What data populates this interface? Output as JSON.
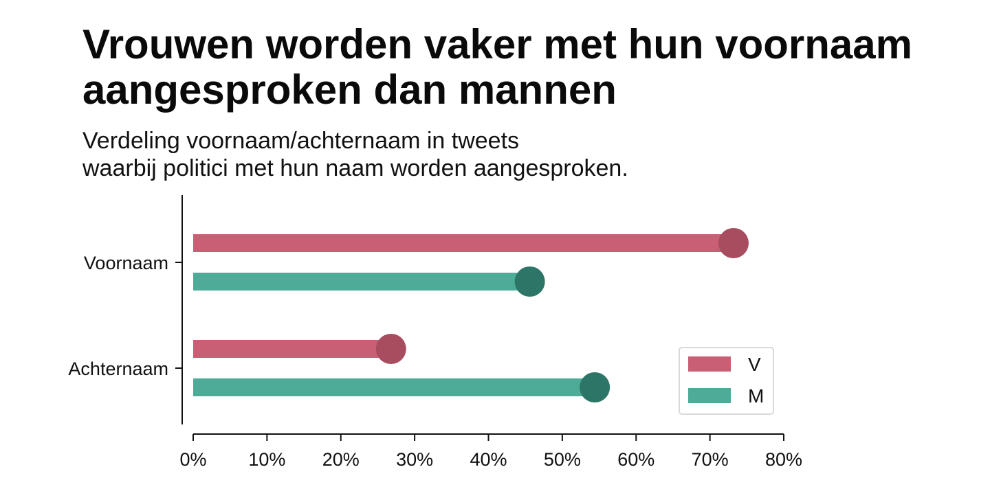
{
  "title_line1": "Vrouwen worden vaker met hun voornaam",
  "title_line2": "aangesproken dan mannen",
  "subtitle_line1": "Verdeling voornaam/achternaam in tweets",
  "subtitle_line2": "waarbij politici met hun naam worden aangesproken.",
  "chart_data": {
    "type": "bar",
    "orientation": "horizontal",
    "style": "lollipop",
    "categories": [
      "Voornaam",
      "Achternaam"
    ],
    "series": [
      {
        "name": "V",
        "values": [
          73.2,
          26.8
        ],
        "color": "#c95f75",
        "marker_color": "#a84c5f"
      },
      {
        "name": "M",
        "values": [
          45.6,
          54.4
        ],
        "color": "#4dab98",
        "marker_color": "#2d7566"
      }
    ],
    "xlim": [
      0,
      80
    ],
    "x_ticks": [
      0,
      10,
      20,
      30,
      40,
      50,
      60,
      70,
      80
    ],
    "x_tick_labels": [
      "0%",
      "10%",
      "20%",
      "30%",
      "40%",
      "50%",
      "60%",
      "70%",
      "80%"
    ],
    "grid": false,
    "legend_position": "bottom-right"
  }
}
